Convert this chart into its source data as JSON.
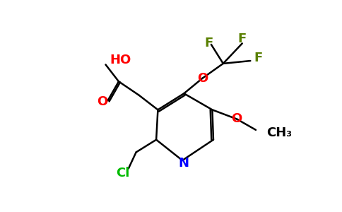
{
  "bg_color": "#ffffff",
  "atom_colors": {
    "O": "#ff0000",
    "N": "#0000ff",
    "F": "#5a8000",
    "Cl": "#00bb00",
    "C": "#000000"
  },
  "figsize": [
    4.84,
    3.0
  ],
  "dpi": 100
}
